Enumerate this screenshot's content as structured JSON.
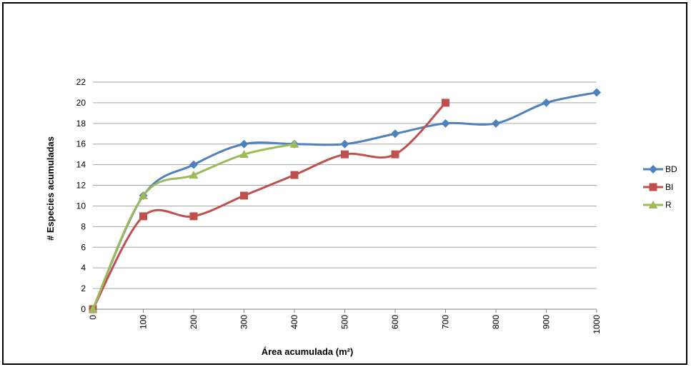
{
  "chart_data": {
    "type": "line",
    "title": "",
    "xlabel": "Área acumulada (m²)",
    "ylabel": "# Especies acumuladas",
    "x": [
      0,
      100,
      200,
      300,
      400,
      500,
      600,
      700,
      800,
      900,
      1000
    ],
    "xlim": [
      0,
      1000
    ],
    "ylim": [
      0,
      22
    ],
    "yticks": [
      0,
      2,
      4,
      6,
      8,
      10,
      12,
      14,
      16,
      18,
      20,
      22
    ],
    "xtick_labels": [
      "0",
      "100",
      "200",
      "300",
      "400",
      "500",
      "600",
      "700",
      "800",
      "900",
      "1000"
    ],
    "grid": "horizontal",
    "legend_position": "right",
    "series": [
      {
        "name": "BD",
        "color": "#4F81BD",
        "marker": "diamond",
        "x": [
          0,
          100,
          200,
          300,
          400,
          500,
          600,
          700,
          800,
          900,
          1000
        ],
        "values": [
          0,
          11,
          14,
          16,
          16,
          16,
          17,
          18,
          18,
          20,
          21
        ]
      },
      {
        "name": "BI",
        "color": "#C0504D",
        "marker": "square",
        "x": [
          0,
          100,
          200,
          300,
          400,
          500,
          600,
          700
        ],
        "values": [
          0,
          9,
          9,
          11,
          13,
          15,
          15,
          20
        ]
      },
      {
        "name": "R",
        "color": "#9BBB59",
        "marker": "triangle",
        "x": [
          0,
          100,
          200,
          300,
          400
        ],
        "values": [
          0,
          11,
          13,
          15,
          16
        ]
      }
    ]
  }
}
